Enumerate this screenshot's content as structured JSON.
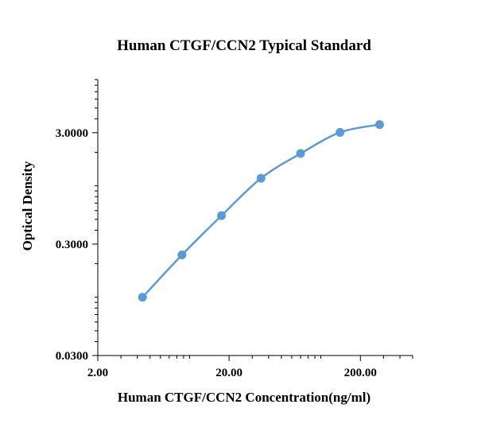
{
  "chart_data": {
    "type": "scatter",
    "title": "Human CTGF/CCN2 Typical Standard",
    "xlabel": "Human CTGF/CCN2 Concentration(ng/ml)",
    "ylabel": "Optical Density",
    "x_scale": "log",
    "y_scale": "log",
    "xlim": [
      2,
      500
    ],
    "ylim": [
      0.03,
      9
    ],
    "x_ticks": [
      2,
      20,
      200
    ],
    "x_tick_labels": [
      "2.00",
      "20.00",
      "200.00"
    ],
    "y_ticks": [
      0.03,
      0.3,
      3
    ],
    "y_tick_labels": [
      "0.0300",
      "0.3000",
      "3.0000"
    ],
    "grid": false,
    "legend": "none",
    "series": [
      {
        "x": [
          4.38,
          8.75,
          17.5,
          35,
          70,
          140,
          280
        ],
        "y": [
          0.1,
          0.24,
          0.54,
          1.17,
          1.95,
          3.02,
          3.55
        ],
        "color": "#5b9bd5",
        "marker": "circle",
        "line": "smooth"
      }
    ]
  }
}
